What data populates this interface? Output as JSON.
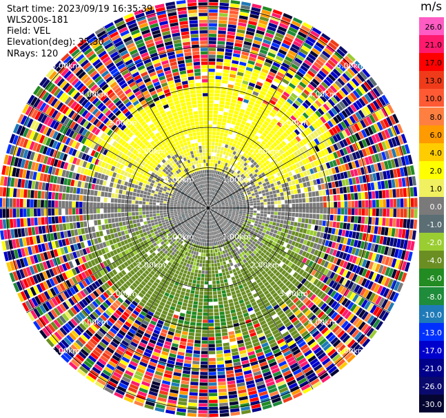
{
  "header": {
    "start_time": "Start time: 2023/09/19 16:35:39",
    "instrument": "WLS200s-181",
    "field": "Field: VEL",
    "elevation": "Elevation(deg): 35.30",
    "nrays": "NRays: 120"
  },
  "chart_data": {
    "type": "heatmap",
    "projection": "polar-ppi",
    "field": "VEL",
    "units": "m/s",
    "n_rays": 120,
    "range_ring_labels_km": [
      1,
      2,
      3,
      4,
      5
    ],
    "range_ring_labels": [
      "1.00km",
      "2.00km",
      "3.00km",
      "4.00km",
      "5.00km"
    ],
    "ring_label_bearings_deg": [
      45,
      135,
      225,
      315
    ],
    "max_range_km": 5.2,
    "pattern": {
      "inner_north_half": "0 to 4 m/s (yellow)",
      "inner_south_half": "-1 to -4 m/s (green)",
      "center": "near 0 m/s (gray)",
      "outer": "random noise across full scale beyond ~3.5 km"
    },
    "colorbar": {
      "label": "m/s",
      "tick_labels": [
        "26.0",
        "21.0",
        "17.0",
        "13.0",
        "10.0",
        "8.0",
        "6.0",
        "4.0",
        "2.0",
        "1.0",
        "0.0",
        "-1.0",
        "-2.0",
        "-4.0",
        "-6.0",
        "-8.0",
        "-10.0",
        "-13.0",
        "-17.0",
        "-21.0",
        "-26.0",
        "-30.0"
      ],
      "colors": [
        "#ff5cc4",
        "#ff1a6e",
        "#ff0000",
        "#f03b1a",
        "#ff5a33",
        "#ff7f40",
        "#ff9a00",
        "#ffcc00",
        "#ffff00",
        "#f0f060",
        "#7a7a7a",
        "#5a6e74",
        "#9acd32",
        "#6b8e23",
        "#228b22",
        "#1e8c3a",
        "#1f7ab8",
        "#0030ff",
        "#0000cd",
        "#00008b",
        "#0a0a6e",
        "#050532"
      ]
    }
  }
}
